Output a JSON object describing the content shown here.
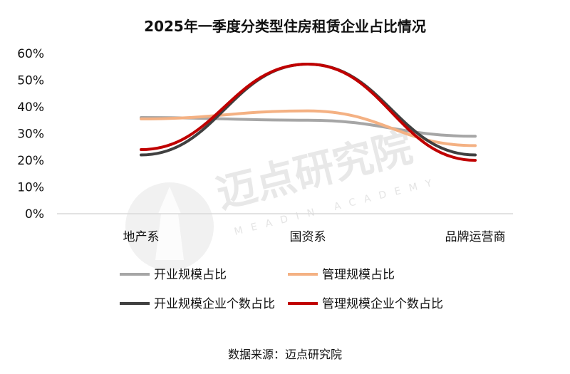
{
  "chart_data": {
    "type": "line",
    "title": "2025年一季度分类型住房租赁企业占比情况",
    "categories": [
      "地产系",
      "国资系",
      "品牌运营商"
    ],
    "ylim": [
      0,
      60
    ],
    "yticks": [
      0,
      10,
      20,
      30,
      40,
      50,
      60
    ],
    "ytick_format": "%",
    "grid": false,
    "smooth": true,
    "legend_position": "bottom",
    "series": [
      {
        "name": "开业规模占比",
        "values": [
          36,
          35,
          29
        ],
        "color": "#a6a6a6"
      },
      {
        "name": "管理规模占比",
        "values": [
          35.5,
          38.5,
          25.5
        ],
        "color": "#f4b183"
      },
      {
        "name": "开业规模企业个数占比",
        "values": [
          22,
          56,
          22
        ],
        "color": "#404040"
      },
      {
        "name": "管理规模企业个数占比",
        "values": [
          24,
          56,
          20
        ],
        "color": "#c00000"
      }
    ],
    "source": "数据来源：迈点研究院"
  },
  "watermark": {
    "text": "迈点研究院",
    "subtext": "MEADIN ACADEMY",
    "color": "#d9d9d9"
  }
}
